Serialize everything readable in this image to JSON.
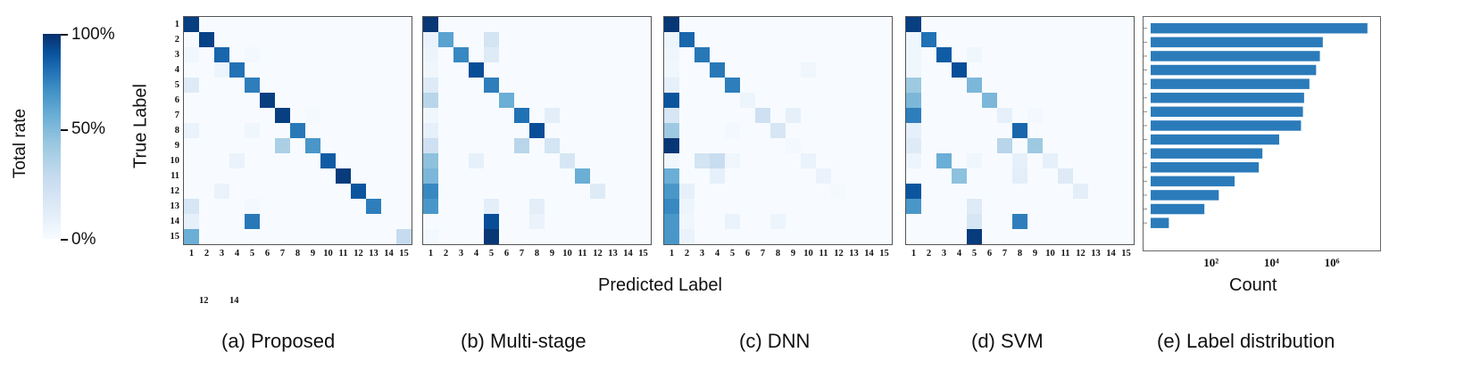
{
  "colorbar": {
    "title": "Total rate",
    "ticks": [
      "100%",
      "50%",
      "0%"
    ],
    "color_low": "#f7fbff",
    "color_high": "#08306b"
  },
  "axes": {
    "ylabel": "True Label",
    "xlabel": "Predicted Label",
    "labels": [
      "1",
      "2",
      "3",
      "4",
      "5",
      "6",
      "7",
      "8",
      "9",
      "10",
      "11",
      "12",
      "13",
      "14",
      "15"
    ]
  },
  "stray_ticks": [
    "12",
    "14"
  ],
  "captions": [
    "(a) Proposed",
    "(b) Multi-stage",
    "(c) DNN",
    "(d) SVM",
    "(e) Label distribution"
  ],
  "bar_color": "#2b7bba",
  "chart_data": [
    {
      "type": "heatmap",
      "caption": "(a) Proposed",
      "matrix": [
        [
          0.96,
          0,
          0,
          0,
          0,
          0,
          0,
          0,
          0,
          0,
          0,
          0,
          0,
          0,
          0
        ],
        [
          0,
          0.95,
          0,
          0,
          0,
          0,
          0,
          0,
          0,
          0,
          0,
          0,
          0,
          0,
          0
        ],
        [
          0.04,
          0,
          0.85,
          0,
          0.03,
          0,
          0,
          0,
          0,
          0,
          0,
          0,
          0,
          0,
          0
        ],
        [
          0,
          0,
          0.06,
          0.82,
          0,
          0,
          0,
          0,
          0,
          0,
          0,
          0,
          0,
          0,
          0
        ],
        [
          0.15,
          0,
          0,
          0,
          0.78,
          0,
          0,
          0,
          0,
          0,
          0,
          0,
          0,
          0,
          0
        ],
        [
          0,
          0,
          0,
          0,
          0,
          0.96,
          0,
          0,
          0,
          0,
          0,
          0,
          0,
          0,
          0
        ],
        [
          0,
          0,
          0,
          0,
          0,
          0,
          0.96,
          0,
          0.02,
          0,
          0,
          0,
          0,
          0,
          0
        ],
        [
          0.08,
          0,
          0,
          0,
          0.05,
          0,
          0,
          0.8,
          0,
          0,
          0,
          0,
          0,
          0,
          0
        ],
        [
          0,
          0,
          0,
          0,
          0,
          0,
          0.4,
          0,
          0.7,
          0,
          0,
          0,
          0,
          0,
          0
        ],
        [
          0,
          0,
          0,
          0.08,
          0,
          0,
          0,
          0,
          0,
          0.88,
          0,
          0,
          0,
          0,
          0
        ],
        [
          0,
          0,
          0,
          0,
          0,
          0,
          0,
          0,
          0,
          0,
          0.97,
          0,
          0,
          0,
          0
        ],
        [
          0,
          0,
          0.08,
          0,
          0,
          0,
          0,
          0,
          0,
          0,
          0,
          0.9,
          0,
          0,
          0
        ],
        [
          0.2,
          0,
          0,
          0,
          0.03,
          0,
          0,
          0,
          0,
          0,
          0,
          0,
          0.78,
          0,
          0
        ],
        [
          0.1,
          0,
          0,
          0,
          0.8,
          0,
          0,
          0,
          0,
          0,
          0,
          0,
          0,
          0,
          0
        ],
        [
          0.6,
          0,
          0,
          0,
          0,
          0,
          0,
          0,
          0,
          0,
          0,
          0,
          0,
          0,
          0.3
        ]
      ]
    },
    {
      "type": "heatmap",
      "caption": "(b) Multi-stage",
      "matrix": [
        [
          0.98,
          0,
          0,
          0,
          0,
          0,
          0,
          0,
          0,
          0,
          0,
          0,
          0,
          0,
          0
        ],
        [
          0.08,
          0.65,
          0,
          0,
          0.22,
          0,
          0,
          0,
          0,
          0,
          0,
          0,
          0,
          0,
          0
        ],
        [
          0.06,
          0,
          0.75,
          0,
          0.15,
          0,
          0,
          0,
          0,
          0,
          0,
          0,
          0,
          0,
          0
        ],
        [
          0.05,
          0,
          0,
          0.92,
          0,
          0,
          0,
          0,
          0,
          0,
          0,
          0,
          0,
          0,
          0
        ],
        [
          0.15,
          0,
          0,
          0,
          0.78,
          0,
          0,
          0,
          0,
          0,
          0,
          0,
          0,
          0,
          0
        ],
        [
          0.35,
          0,
          0,
          0,
          0,
          0.6,
          0,
          0,
          0,
          0,
          0,
          0,
          0,
          0,
          0
        ],
        [
          0.05,
          0,
          0,
          0,
          0,
          0,
          0.82,
          0,
          0.12,
          0,
          0,
          0,
          0,
          0,
          0
        ],
        [
          0.1,
          0,
          0,
          0,
          0,
          0,
          0,
          0.92,
          0,
          0,
          0,
          0,
          0,
          0,
          0
        ],
        [
          0.25,
          0,
          0,
          0,
          0,
          0,
          0.35,
          0,
          0.22,
          0,
          0,
          0,
          0,
          0,
          0
        ],
        [
          0.5,
          0,
          0,
          0.1,
          0,
          0,
          0,
          0,
          0,
          0.2,
          0,
          0,
          0,
          0,
          0
        ],
        [
          0.55,
          0,
          0,
          0,
          0,
          0,
          0,
          0,
          0,
          0,
          0.6,
          0,
          0,
          0,
          0
        ],
        [
          0.75,
          0,
          0,
          0,
          0,
          0,
          0,
          0,
          0,
          0,
          0,
          0.15,
          0,
          0,
          0
        ],
        [
          0.7,
          0,
          0,
          0,
          0.12,
          0,
          0,
          0.12,
          0,
          0,
          0,
          0,
          0,
          0,
          0
        ],
        [
          0,
          0,
          0,
          0,
          0.92,
          0,
          0,
          0.08,
          0,
          0,
          0,
          0,
          0,
          0,
          0
        ],
        [
          0.03,
          0,
          0,
          0,
          0.98,
          0,
          0,
          0,
          0,
          0,
          0,
          0,
          0,
          0,
          0
        ]
      ]
    },
    {
      "type": "heatmap",
      "caption": "(c) DNN",
      "matrix": [
        [
          0.98,
          0,
          0,
          0,
          0,
          0,
          0,
          0,
          0,
          0,
          0,
          0,
          0,
          0,
          0
        ],
        [
          0.06,
          0.85,
          0,
          0,
          0,
          0,
          0,
          0,
          0,
          0,
          0,
          0,
          0,
          0,
          0
        ],
        [
          0.05,
          0,
          0.8,
          0,
          0,
          0,
          0,
          0,
          0,
          0,
          0,
          0,
          0,
          0,
          0
        ],
        [
          0.04,
          0,
          0,
          0.8,
          0,
          0,
          0,
          0,
          0,
          0.05,
          0,
          0,
          0,
          0,
          0
        ],
        [
          0.1,
          0,
          0,
          0,
          0.78,
          0,
          0,
          0,
          0,
          0,
          0,
          0,
          0,
          0,
          0
        ],
        [
          0.9,
          0,
          0,
          0,
          0,
          0.06,
          0,
          0,
          0,
          0,
          0,
          0,
          0,
          0,
          0
        ],
        [
          0.2,
          0,
          0,
          0,
          0,
          0,
          0.25,
          0,
          0.1,
          0,
          0,
          0,
          0,
          0,
          0
        ],
        [
          0.45,
          0,
          0,
          0,
          0.03,
          0,
          0,
          0.2,
          0,
          0,
          0,
          0,
          0,
          0,
          0
        ],
        [
          0.98,
          0,
          0,
          0,
          0,
          0,
          0,
          0,
          0.03,
          0,
          0,
          0,
          0,
          0,
          0
        ],
        [
          0.05,
          0,
          0.22,
          0.28,
          0.05,
          0,
          0,
          0,
          0,
          0.08,
          0,
          0,
          0,
          0,
          0
        ],
        [
          0.6,
          0,
          0,
          0.1,
          0,
          0,
          0,
          0,
          0,
          0,
          0.08,
          0,
          0,
          0,
          0
        ],
        [
          0.7,
          0.1,
          0,
          0,
          0,
          0,
          0,
          0,
          0,
          0,
          0,
          0.02,
          0,
          0,
          0
        ],
        [
          0.75,
          0.06,
          0,
          0,
          0,
          0,
          0,
          0,
          0,
          0,
          0,
          0,
          0,
          0,
          0
        ],
        [
          0.7,
          0.05,
          0,
          0,
          0.08,
          0,
          0,
          0.06,
          0,
          0,
          0,
          0,
          0,
          0,
          0
        ],
        [
          0.7,
          0.08,
          0,
          0,
          0,
          0,
          0,
          0,
          0,
          0,
          0,
          0,
          0,
          0,
          0
        ]
      ]
    },
    {
      "type": "heatmap",
      "caption": "(d) SVM",
      "matrix": [
        [
          0.96,
          0,
          0,
          0,
          0,
          0,
          0,
          0,
          0,
          0,
          0,
          0,
          0,
          0,
          0
        ],
        [
          0.05,
          0.82,
          0,
          0,
          0,
          0,
          0,
          0,
          0,
          0,
          0,
          0,
          0,
          0,
          0
        ],
        [
          0.05,
          0,
          0.88,
          0,
          0.05,
          0,
          0,
          0,
          0,
          0,
          0,
          0,
          0,
          0,
          0
        ],
        [
          0.05,
          0,
          0,
          0.92,
          0,
          0,
          0,
          0,
          0,
          0,
          0,
          0,
          0,
          0,
          0
        ],
        [
          0.45,
          0,
          0,
          0,
          0.55,
          0,
          0,
          0,
          0,
          0,
          0,
          0,
          0,
          0,
          0
        ],
        [
          0.55,
          0,
          0,
          0,
          0,
          0.55,
          0,
          0,
          0,
          0,
          0,
          0,
          0,
          0,
          0
        ],
        [
          0.78,
          0,
          0,
          0,
          0,
          0,
          0.1,
          0,
          0.03,
          0,
          0,
          0,
          0,
          0,
          0
        ],
        [
          0.1,
          0,
          0,
          0,
          0,
          0,
          0,
          0.85,
          0,
          0,
          0,
          0,
          0,
          0,
          0
        ],
        [
          0.15,
          0,
          0,
          0,
          0,
          0,
          0.35,
          0,
          0.45,
          0,
          0,
          0,
          0,
          0,
          0
        ],
        [
          0.06,
          0,
          0.6,
          0,
          0.05,
          0,
          0,
          0.1,
          0,
          0.1,
          0,
          0,
          0,
          0,
          0
        ],
        [
          0,
          0,
          0,
          0.5,
          0,
          0,
          0,
          0.12,
          0,
          0,
          0.15,
          0,
          0,
          0,
          0
        ],
        [
          0.9,
          0,
          0,
          0,
          0,
          0,
          0,
          0,
          0,
          0,
          0,
          0.12,
          0,
          0,
          0
        ],
        [
          0.7,
          0,
          0,
          0,
          0.15,
          0,
          0,
          0,
          0,
          0,
          0,
          0,
          0,
          0,
          0
        ],
        [
          0,
          0,
          0,
          0,
          0.2,
          0,
          0,
          0.78,
          0,
          0,
          0,
          0,
          0,
          0,
          0
        ],
        [
          0,
          0,
          0,
          0,
          0.97,
          0,
          0,
          0,
          0,
          0,
          0,
          0,
          0,
          0,
          0
        ]
      ]
    },
    {
      "type": "bar",
      "orientation": "horizontal",
      "caption": "(e) Label distribution",
      "xlabel": "Count",
      "x_scale": "log",
      "xlim": [
        1,
        30000000
      ],
      "xticks": [
        "10²",
        "10⁴",
        "10⁶"
      ],
      "xtick_values": [
        100,
        10000,
        1000000
      ],
      "values": [
        15000000,
        500000,
        400000,
        300000,
        180000,
        120000,
        110000,
        95000,
        18000,
        5000,
        3800,
        600,
        180,
        60,
        4
      ]
    }
  ]
}
